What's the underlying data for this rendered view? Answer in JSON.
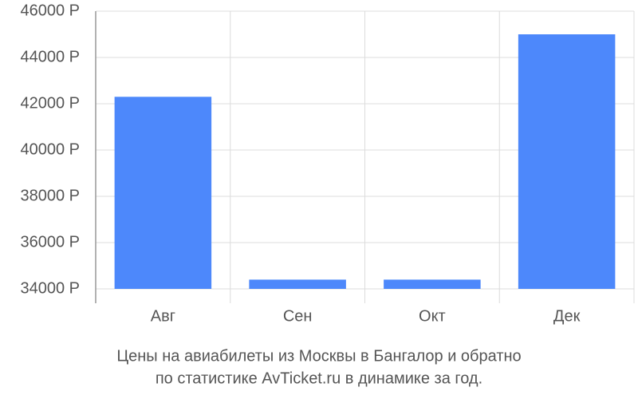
{
  "chart_data": {
    "type": "bar",
    "title": "Цены на авиабилеты из Москвы в Бангалор и обратно",
    "subtitle": "по статистике AvTicket.ru в динамике за год.",
    "categories": [
      "Авг",
      "Сен",
      "Окт",
      "Дек"
    ],
    "values": [
      42300,
      34400,
      34400,
      45000
    ],
    "color": "#4d88fb",
    "ylim": [
      34000,
      46000
    ],
    "yticks": [
      {
        "value": 34000,
        "label": "34000 Р"
      },
      {
        "value": 36000,
        "label": "36000 Р"
      },
      {
        "value": 38000,
        "label": "38000 Р"
      },
      {
        "value": 40000,
        "label": "40000 Р"
      },
      {
        "value": 42000,
        "label": "42000 Р"
      },
      {
        "value": 44000,
        "label": "44000 Р"
      },
      {
        "value": 46000,
        "label": "46000 Р"
      }
    ],
    "grid": true
  }
}
